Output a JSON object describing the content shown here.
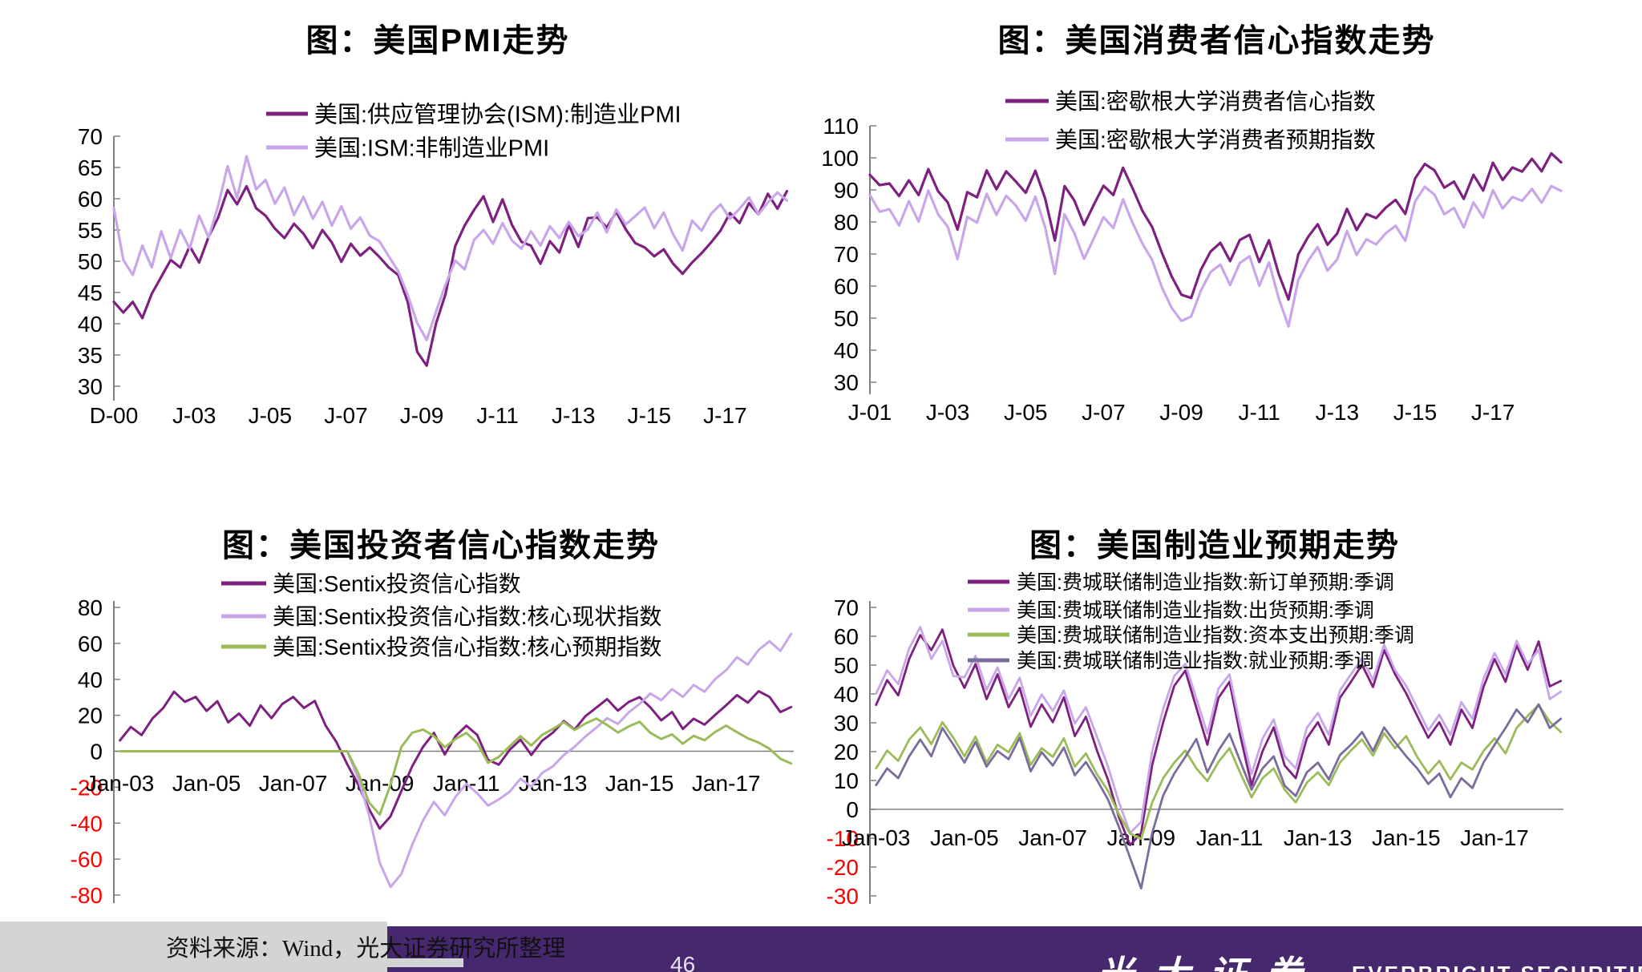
{
  "footer": {
    "source": "资料来源：Wind，光大证券研究所整理",
    "page_number": "46",
    "logo_cn": "光大证券",
    "logo_en": "EVERBRIGHT SECURITIES"
  },
  "colors": {
    "dark_purple": "#7E207F",
    "light_purple": "#C9A5EA",
    "green": "#9BBB59",
    "gray_purple": "#7B6C9C",
    "negative_tick": "#FF0000",
    "axis_gray": "#808080",
    "footer_purple": "#46286E",
    "footer_gray": "#D4D4D4"
  },
  "chart_data": [
    {
      "type": "line",
      "title": "图：美国PMI走势",
      "xlabel": "",
      "ylabel": "",
      "ylim": [
        30,
        70
      ],
      "y_ticks": [
        70,
        65,
        60,
        55,
        50,
        45,
        40,
        35,
        30
      ],
      "xlim": [
        2000.92,
        2018.85
      ],
      "x_ticks": [
        "D-00",
        "J-03",
        "J-05",
        "J-07",
        "J-09",
        "J-11",
        "J-13",
        "J-15",
        "J-17"
      ],
      "x_tick_years": [
        2000.92,
        2003.04,
        2005.04,
        2007.04,
        2009.04,
        2011.04,
        2013.04,
        2015.04,
        2017.04
      ],
      "legend_position": "top",
      "grid": false,
      "series": [
        {
          "label": "美国:供应管理协会(ISM):制造业PMI",
          "color": "#7E207F",
          "start": 2000.92,
          "step": 0.25,
          "values": [
            43.5,
            41.8,
            43.5,
            40.9,
            44.8,
            47.5,
            50.2,
            49.0,
            52.4,
            49.8,
            53.9,
            57.0,
            61.4,
            59.1,
            62.0,
            58.5,
            57.3,
            55.2,
            53.7,
            56.0,
            54.4,
            52.1,
            55.0,
            53.0,
            49.9,
            52.8,
            50.9,
            52.2,
            50.7,
            49.0,
            47.8,
            43.5,
            35.5,
            33.3,
            40.1,
            44.8,
            52.4,
            55.7,
            58.2,
            60.4,
            56.3,
            59.9,
            55.8,
            53.1,
            52.5,
            49.6,
            53.2,
            51.4,
            55.8,
            52.3,
            56.9,
            57.0,
            55.4,
            57.9,
            55.1,
            52.9,
            52.2,
            50.8,
            51.9,
            49.6,
            48.0,
            49.8,
            51.3,
            53.0,
            54.9,
            57.7,
            56.1,
            59.3,
            57.5,
            60.8,
            58.4,
            61.2
          ]
        },
        {
          "label": "美国:ISM:非制造业PMI",
          "color": "#C9A5EA",
          "start": 2000.92,
          "step": 0.25,
          "values": [
            58.5,
            50.2,
            47.8,
            52.5,
            49.0,
            54.8,
            50.5,
            55.0,
            52.0,
            57.3,
            53.8,
            58.9,
            65.2,
            60.1,
            66.8,
            61.5,
            63.0,
            59.2,
            61.8,
            57.4,
            60.3,
            56.8,
            59.5,
            55.7,
            58.8,
            55.2,
            57.0,
            54.1,
            53.2,
            50.8,
            48.4,
            44.6,
            40.1,
            37.4,
            42.0,
            46.3,
            50.1,
            48.7,
            53.4,
            55.0,
            52.8,
            56.1,
            53.3,
            52.0,
            54.8,
            52.5,
            55.6,
            53.7,
            56.3,
            54.0,
            55.1,
            57.8,
            54.6,
            58.3,
            55.9,
            57.2,
            58.6,
            55.3,
            57.8,
            54.3,
            51.7,
            56.5,
            54.9,
            57.6,
            59.1,
            56.8,
            58.4,
            60.2,
            57.5,
            59.4,
            61.0,
            59.7
          ]
        }
      ]
    },
    {
      "type": "line",
      "title": "图：美国消费者信心指数走势",
      "xlabel": "",
      "ylabel": "",
      "ylim": [
        30,
        110
      ],
      "y_ticks": [
        110,
        100,
        90,
        80,
        70,
        60,
        50,
        40,
        30
      ],
      "xlim": [
        2001.04,
        2018.85
      ],
      "x_ticks": [
        "J-01",
        "J-03",
        "J-05",
        "J-07",
        "J-09",
        "J-11",
        "J-13",
        "J-15",
        "J-17"
      ],
      "x_tick_years": [
        2001.04,
        2003.04,
        2005.04,
        2007.04,
        2009.04,
        2011.04,
        2013.04,
        2015.04,
        2017.04
      ],
      "legend_position": "top",
      "grid": false,
      "series": [
        {
          "label": "美国:密歇根大学消费者信心指数",
          "color": "#7E207F",
          "start": 2001.04,
          "step": 0.25,
          "values": [
            94.7,
            91.5,
            92.0,
            88.1,
            93.0,
            88.4,
            96.5,
            89.6,
            86.1,
            77.6,
            89.3,
            87.7,
            96.1,
            90.2,
            95.8,
            92.6,
            89.1,
            96.0,
            87.3,
            74.2,
            91.2,
            86.7,
            79.1,
            85.4,
            91.3,
            88.4,
            96.9,
            90.4,
            83.4,
            78.4,
            70.3,
            63.0,
            57.3,
            56.3,
            65.1,
            70.8,
            73.5,
            67.8,
            74.4,
            76.0,
            67.5,
            74.3,
            63.7,
            55.8,
            69.9,
            75.3,
            79.3,
            72.9,
            76.4,
            84.1,
            77.5,
            82.5,
            81.2,
            84.5,
            86.9,
            82.5,
            93.6,
            98.1,
            96.1,
            90.7,
            92.6,
            87.2,
            94.7,
            89.8,
            98.5,
            93.1,
            97.0,
            95.7,
            99.7,
            95.8,
            101.4,
            98.6
          ]
        },
        {
          "label": "美国:密歇根大学消费者预期指数",
          "color": "#C9A5EA",
          "start": 2001.04,
          "step": 0.25,
          "values": [
            88.4,
            83.2,
            84.0,
            78.9,
            86.5,
            80.1,
            89.8,
            82.4,
            78.5,
            68.4,
            81.6,
            79.8,
            88.8,
            82.2,
            88.2,
            85.1,
            80.4,
            87.9,
            78.3,
            63.8,
            82.4,
            76.5,
            68.5,
            74.9,
            81.5,
            78.1,
            87.1,
            79.6,
            73.2,
            68.1,
            59.5,
            53.2,
            49.1,
            50.5,
            58.6,
            64.4,
            66.7,
            60.3,
            67.2,
            69.3,
            60.1,
            67.4,
            56.1,
            47.4,
            61.9,
            67.8,
            72.2,
            64.8,
            68.3,
            77.2,
            69.7,
            74.6,
            73.0,
            76.5,
            78.8,
            74.1,
            86.4,
            91.0,
            88.5,
            82.4,
            84.4,
            78.3,
            86.1,
            81.4,
            89.9,
            84.2,
            87.8,
            86.6,
            90.3,
            86.0,
            91.2,
            89.7
          ]
        }
      ]
    },
    {
      "type": "line",
      "title": "图：美国投资者信心指数走势",
      "xlabel": "",
      "ylabel": "",
      "ylim": [
        -80,
        80
      ],
      "y_ticks": [
        80,
        60,
        40,
        20,
        0,
        -20,
        -40,
        -60,
        -80
      ],
      "xlim": [
        2002.9,
        2018.6
      ],
      "x_ticks": [
        "Jan-03",
        "Jan-05",
        "Jan-07",
        "Jan-09",
        "Jan-11",
        "Jan-13",
        "Jan-15",
        "Jan-17"
      ],
      "x_tick_years": [
        2003.04,
        2005.04,
        2007.04,
        2009.04,
        2011.04,
        2013.04,
        2015.04,
        2017.04
      ],
      "legend_position": "top",
      "grid": false,
      "series": [
        {
          "label": "美国:Sentix投资信心指数",
          "color": "#7E207F",
          "start": 2003.04,
          "step": 0.25,
          "values": [
            6.0,
            13.5,
            9.0,
            18.2,
            24.0,
            33.1,
            27.5,
            30.2,
            22.4,
            27.8,
            16.1,
            21.0,
            14.2,
            25.5,
            18.4,
            26.3,
            30.2,
            24.1,
            28.0,
            14.3,
            5.1,
            -7.2,
            -18.4,
            -32.0,
            -43.0,
            -36.2,
            -22.1,
            -8.4,
            2.5,
            10.2,
            -1.8,
            8.4,
            14.2,
            9.1,
            -4.8,
            -7.5,
            0.8,
            6.4,
            -2.1,
            5.9,
            10.4,
            16.8,
            12.1,
            19.5,
            24.2,
            29.0,
            22.6,
            27.4,
            30.1,
            24.4,
            17.2,
            21.8,
            12.4,
            18.1,
            14.8,
            20.3,
            25.6,
            31.2,
            27.0,
            33.4,
            30.2,
            21.8,
            24.6
          ]
        },
        {
          "label": "美国:Sentix投资信心指数:核心现状指数",
          "color": "#C9A5EA",
          "start": 2003.04,
          "step": 0.25,
          "values": [
            0,
            0,
            0,
            0,
            0,
            0,
            0,
            0,
            0,
            0,
            0,
            0,
            0,
            0,
            0,
            0,
            0,
            0,
            0,
            0,
            0,
            0,
            -15.0,
            -35.2,
            -62.0,
            -75.5,
            -68.3,
            -52.1,
            -38.4,
            -28.2,
            -35.6,
            -25.3,
            -18.1,
            -23.4,
            -30.2,
            -26.8,
            -22.5,
            -15.3,
            -19.8,
            -12.1,
            -8.4,
            -2.1,
            2.5,
            8.2,
            13.1,
            18.4,
            15.2,
            21.6,
            26.3,
            32.1,
            28.4,
            34.6,
            30.2,
            36.8,
            33.1,
            40.2,
            45.1,
            52.3,
            48.2,
            56.4,
            61.2,
            55.8,
            65.3
          ]
        },
        {
          "label": "美国:Sentix投资信心指数:核心预期指数",
          "color": "#9BBB59",
          "start": 2003.04,
          "step": 0.25,
          "values": [
            0,
            0,
            0,
            0,
            0,
            0,
            0,
            0,
            0,
            0,
            0,
            0,
            0,
            0,
            0,
            0,
            0,
            0,
            0,
            0,
            0,
            0,
            -12.0,
            -28.4,
            -35.2,
            -18.6,
            2.4,
            10.3,
            12.1,
            8.4,
            2.2,
            6.8,
            10.2,
            4.6,
            -6.4,
            -3.1,
            2.8,
            8.4,
            3.2,
            9.1,
            12.4,
            16.2,
            11.8,
            15.4,
            18.2,
            14.6,
            10.4,
            13.8,
            16.4,
            10.2,
            6.8,
            9.4,
            4.2,
            8.6,
            6.1,
            10.8,
            14.2,
            10.6,
            7.2,
            4.8,
            1.4,
            -4.2,
            -6.8
          ]
        }
      ]
    },
    {
      "type": "line",
      "title": "图：美国制造业预期走势",
      "xlabel": "",
      "ylabel": "",
      "ylim": [
        -30,
        70
      ],
      "y_ticks": [
        70,
        60,
        50,
        40,
        30,
        20,
        10,
        0,
        -10,
        -20,
        -30
      ],
      "xlim": [
        2002.9,
        2018.6
      ],
      "x_ticks": [
        "Jan-03",
        "Jan-05",
        "Jan-07",
        "Jan-09",
        "Jan-11",
        "Jan-13",
        "Jan-15",
        "Jan-17"
      ],
      "x_tick_years": [
        2003.04,
        2005.04,
        2007.04,
        2009.04,
        2011.04,
        2013.04,
        2015.04,
        2017.04
      ],
      "legend_position": "top",
      "grid": false,
      "series": [
        {
          "label": "美国:费城联储制造业指数:新订单预期:季调",
          "color": "#7E207F",
          "start": 2003.04,
          "step": 0.25,
          "values": [
            36.2,
            44.8,
            39.5,
            52.1,
            60.4,
            55.2,
            62.3,
            49.8,
            42.1,
            50.4,
            38.2,
            46.8,
            35.4,
            42.1,
            28.6,
            36.4,
            30.2,
            38.8,
            25.4,
            32.1,
            20.4,
            10.2,
            -2.8,
            -12.4,
            -8.2,
            15.4,
            30.2,
            42.8,
            48.1,
            35.2,
            22.4,
            38.6,
            44.2,
            25.1,
            8.4,
            20.2,
            28.4,
            15.2,
            10.8,
            24.6,
            30.2,
            22.4,
            38.6,
            44.2,
            50.1,
            42.4,
            55.2,
            46.8,
            40.2,
            32.4,
            24.8,
            30.2,
            22.4,
            34.6,
            28.2,
            42.4,
            52.1,
            44.2,
            56.8,
            48.4,
            58.2,
            42.6,
            44.5
          ]
        },
        {
          "label": "美国:费城联储制造业指数:出货预期:季调",
          "color": "#C9A5EA",
          "start": 2003.04,
          "step": 0.25,
          "values": [
            40.1,
            48.2,
            43.4,
            55.8,
            63.2,
            52.1,
            58.4,
            46.2,
            45.8,
            53.2,
            41.4,
            49.2,
            38.2,
            45.6,
            32.4,
            39.8,
            34.1,
            41.2,
            29.8,
            35.4,
            25.2,
            14.8,
            2.4,
            -8.2,
            -4.4,
            20.2,
            34.8,
            46.2,
            50.4,
            38.4,
            26.2,
            41.8,
            46.8,
            28.4,
            12.2,
            24.6,
            31.2,
            18.4,
            14.2,
            28.2,
            33.4,
            25.8,
            41.2,
            46.8,
            52.4,
            44.8,
            57.1,
            48.2,
            42.8,
            35.2,
            27.4,
            32.8,
            25.8,
            37.2,
            31.4,
            45.2,
            54.2,
            46.8,
            58.4,
            50.2,
            55.4,
            38.2,
            40.8
          ]
        },
        {
          "label": "美国:费城联储制造业指数:资本支出预期:季调",
          "color": "#9BBB59",
          "start": 2003.04,
          "step": 0.25,
          "values": [
            14.2,
            20.4,
            16.8,
            24.2,
            28.4,
            22.6,
            30.2,
            24.8,
            18.4,
            25.2,
            16.2,
            22.4,
            19.8,
            26.4,
            15.4,
            21.2,
            18.2,
            24.6,
            14.8,
            19.4,
            12.2,
            6.4,
            -1.8,
            -8.4,
            -10.2,
            2.4,
            10.8,
            16.2,
            20.4,
            14.2,
            9.8,
            16.4,
            21.2,
            12.4,
            4.2,
            10.8,
            14.2,
            6.8,
            2.4,
            9.2,
            12.8,
            8.4,
            16.2,
            20.4,
            24.2,
            18.6,
            26.4,
            21.2,
            25.4,
            18.2,
            12.4,
            16.8,
            10.4,
            16.2,
            13.8,
            20.2,
            24.6,
            19.4,
            28.2,
            32.4,
            36.2,
            30.4,
            26.8
          ]
        },
        {
          "label": "美国:费城联储制造业指数:就业预期:季调",
          "color": "#7B6C9C",
          "start": 2003.04,
          "step": 0.25,
          "values": [
            8.4,
            14.2,
            10.8,
            18.4,
            24.2,
            18.4,
            28.2,
            22.4,
            16.2,
            23.4,
            14.8,
            20.2,
            17.4,
            24.8,
            13.2,
            19.8,
            15.2,
            21.4,
            11.8,
            16.4,
            10.2,
            3.4,
            -6.2,
            -16.8,
            -27.4,
            -8.2,
            4.8,
            12.4,
            18.2,
            24.4,
            12.8,
            20.4,
            26.2,
            16.4,
            6.8,
            14.2,
            18.4,
            8.2,
            4.6,
            12.8,
            16.2,
            10.4,
            18.8,
            22.4,
            26.8,
            20.2,
            28.4,
            23.2,
            18.4,
            14.2,
            8.8,
            12.4,
            4.2,
            10.8,
            7.4,
            16.2,
            22.4,
            28.2,
            34.6,
            30.2,
            36.4,
            28.2,
            31.4
          ]
        }
      ]
    }
  ]
}
